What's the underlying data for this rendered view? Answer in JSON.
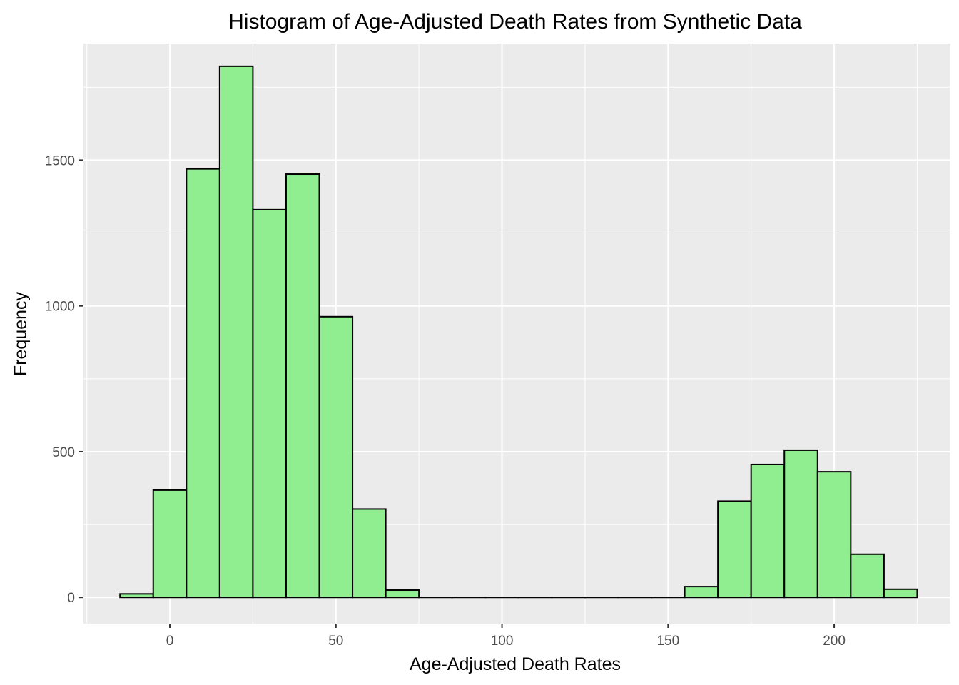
{
  "chart_data": {
    "type": "bar",
    "title": "Histogram of Age-Adjusted Death Rates  from Synthetic Data",
    "xlabel": "Age-Adjusted Death Rates",
    "ylabel": "Frequency",
    "xlim": [
      -26,
      235
    ],
    "ylim": [
      -90,
      1900
    ],
    "x_ticks": [
      0,
      50,
      100,
      150,
      200
    ],
    "y_ticks": [
      0,
      500,
      1000,
      1500
    ],
    "grid": true,
    "bin_width": 10,
    "bar_fill": "#90EE90",
    "bar_stroke": "#000000",
    "panel_background": "#EBEBEB",
    "grid_color": "#FFFFFF",
    "bins": [
      {
        "x": -10,
        "count": 12
      },
      {
        "x": 0,
        "count": 368
      },
      {
        "x": 10,
        "count": 1470
      },
      {
        "x": 20,
        "count": 1822
      },
      {
        "x": 30,
        "count": 1330
      },
      {
        "x": 40,
        "count": 1452
      },
      {
        "x": 50,
        "count": 963
      },
      {
        "x": 60,
        "count": 303
      },
      {
        "x": 70,
        "count": 25
      },
      {
        "x": 80,
        "count": 0
      },
      {
        "x": 90,
        "count": 0
      },
      {
        "x": 100,
        "count": 0
      },
      {
        "x": 110,
        "count": 0
      },
      {
        "x": 120,
        "count": 0
      },
      {
        "x": 130,
        "count": 0
      },
      {
        "x": 140,
        "count": 0
      },
      {
        "x": 150,
        "count": 0
      },
      {
        "x": 160,
        "count": 37
      },
      {
        "x": 170,
        "count": 330
      },
      {
        "x": 180,
        "count": 456
      },
      {
        "x": 190,
        "count": 505
      },
      {
        "x": 200,
        "count": 431
      },
      {
        "x": 210,
        "count": 148
      },
      {
        "x": 220,
        "count": 28
      }
    ]
  }
}
